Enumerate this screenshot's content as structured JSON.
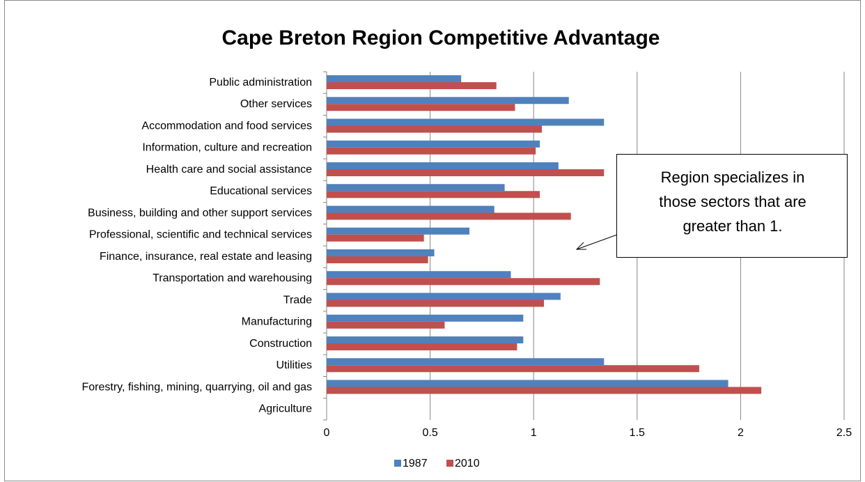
{
  "chart_data": {
    "type": "bar",
    "orientation": "horizontal",
    "title": "Cape Breton Region Competitive Advantage",
    "categories": [
      "Public administration",
      "Other services",
      "Accommodation and food services",
      "Information, culture and recreation",
      "Health care and social assistance",
      "Educational services",
      "Business, building and other support services",
      "Professional, scientific and technical services",
      "Finance, insurance, real estate and leasing",
      "Transportation and warehousing",
      "Trade",
      "Manufacturing",
      "Construction",
      "Utilities",
      "Forestry, fishing, mining, quarrying, oil and gas",
      "Agriculture"
    ],
    "series": [
      {
        "name": "1987",
        "color": "#4f81bd",
        "values": [
          0.65,
          1.17,
          1.34,
          1.03,
          1.12,
          0.86,
          0.81,
          0.69,
          0.52,
          0.89,
          1.13,
          0.95,
          0.95,
          1.34,
          1.94,
          null
        ]
      },
      {
        "name": "2010",
        "color": "#c0504d",
        "values": [
          0.82,
          0.91,
          1.04,
          1.01,
          1.34,
          1.03,
          1.18,
          0.47,
          0.49,
          1.32,
          1.05,
          0.57,
          0.92,
          1.8,
          2.1,
          null
        ]
      }
    ],
    "xlim": [
      0,
      2.5
    ],
    "xticks": [
      0,
      0.5,
      1,
      1.5,
      2,
      2.5
    ],
    "grid": true,
    "legend": "bottom",
    "annotation": [
      "Region specializes in",
      "those sectors that are",
      "greater than 1."
    ]
  }
}
